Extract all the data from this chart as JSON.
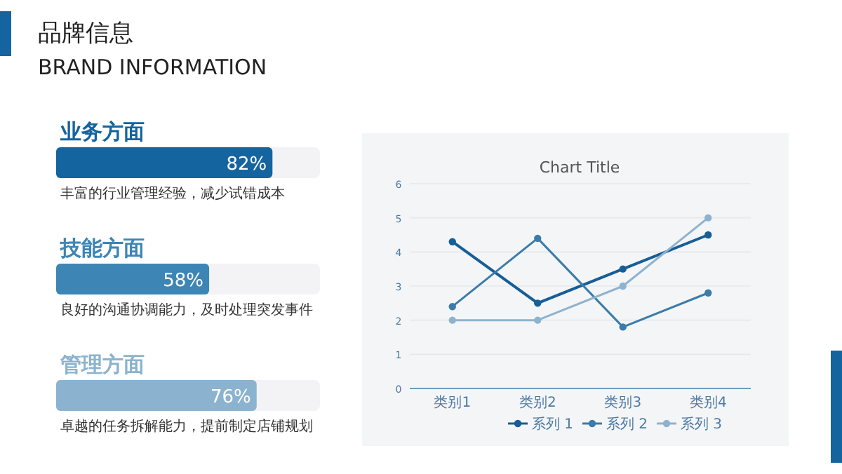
{
  "chart_data": [
    {
      "type": "bar",
      "orientation": "horizontal",
      "title": "品牌信息",
      "subtitle": "BRAND INFORMATION",
      "categories": [
        "业务方面",
        "技能方面",
        "管理方面"
      ],
      "values": [
        82,
        58,
        76
      ],
      "value_labels": [
        "82%",
        "58%",
        "76%"
      ],
      "colors": [
        "#1464a0",
        "#3d85b5",
        "#8bb3cf"
      ],
      "xlim": [
        0,
        100
      ],
      "annotations": [
        "丰富的行业管理经验，减少试错成本",
        "良好的沟通协调能力，及时处理突发事件",
        "卓越的任务拆解能力，提前制定店铺规划"
      ]
    },
    {
      "type": "line",
      "title": "Chart Title",
      "categories": [
        "类别1",
        "类别2",
        "类别3",
        "类别4"
      ],
      "ylim": [
        0,
        6
      ],
      "yticks": [
        0,
        1,
        2,
        3,
        4,
        5,
        6
      ],
      "grid": "y",
      "legend": "bottom",
      "marker": "circle",
      "line_style": "solid",
      "series": [
        {
          "name": "系列 1",
          "color": "#175e96",
          "values": [
            4.3,
            2.5,
            3.5,
            4.5
          ]
        },
        {
          "name": "系列 2",
          "color": "#3a7caa",
          "values": [
            2.4,
            4.4,
            1.8,
            2.8
          ]
        },
        {
          "name": "系列 3",
          "color": "#8fb3cf",
          "values": [
            2,
            2,
            3,
            5
          ]
        }
      ]
    }
  ]
}
